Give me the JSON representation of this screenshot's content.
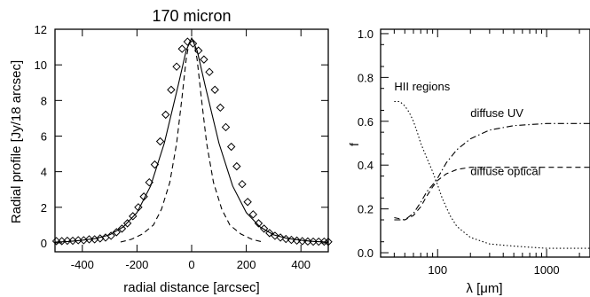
{
  "chart_data": [
    {
      "type": "line",
      "title": "170 micron",
      "xlabel": "radial distance [arcsec]",
      "ylabel": "Radial profile [Jy/18 arcsec]",
      "xlim": [
        -500,
        500
      ],
      "ylim": [
        -0.5,
        12
      ],
      "xticks": [
        -400,
        -200,
        0,
        200,
        400
      ],
      "yticks": [
        0,
        2,
        4,
        6,
        8,
        10,
        12
      ],
      "grid": false,
      "series": [
        {
          "style": "diamond-markers",
          "x": [
            -495,
            -475,
            -455,
            -435,
            -415,
            -395,
            -375,
            -355,
            -335,
            -315,
            -295,
            -275,
            -255,
            -235,
            -215,
            -195,
            -175,
            -155,
            -135,
            -115,
            -95,
            -75,
            -55,
            -35,
            -15,
            5,
            25,
            45,
            65,
            85,
            105,
            125,
            145,
            165,
            185,
            205,
            225,
            245,
            265,
            285,
            305,
            325,
            345,
            365,
            385,
            405,
            425,
            445,
            465,
            485,
            500
          ],
          "y": [
            0.1,
            0.1,
            0.12,
            0.12,
            0.15,
            0.15,
            0.2,
            0.2,
            0.25,
            0.3,
            0.4,
            0.6,
            0.8,
            1.1,
            1.5,
            2.0,
            2.6,
            3.4,
            4.4,
            5.7,
            7.2,
            8.6,
            9.9,
            10.9,
            11.3,
            11.2,
            10.8,
            10.3,
            9.6,
            8.6,
            7.6,
            6.5,
            5.4,
            4.3,
            3.3,
            2.3,
            1.6,
            1.1,
            0.8,
            0.55,
            0.4,
            0.3,
            0.22,
            0.17,
            0.13,
            0.1,
            0.08,
            0.07,
            0.07,
            0.07,
            0.06
          ]
        },
        {
          "style": "solid",
          "x": [
            -500,
            -450,
            -400,
            -350,
            -300,
            -250,
            -200,
            -150,
            -100,
            -50,
            -20,
            0,
            20,
            50,
            100,
            150,
            200,
            250,
            300,
            350,
            400,
            450,
            500
          ],
          "y": [
            0.05,
            0.08,
            0.15,
            0.25,
            0.45,
            0.9,
            1.7,
            3.2,
            5.6,
            8.8,
            10.8,
            11.5,
            10.8,
            8.8,
            5.6,
            3.2,
            1.7,
            0.9,
            0.45,
            0.25,
            0.15,
            0.08,
            0.05
          ]
        },
        {
          "style": "dashed",
          "x": [
            -260,
            -220,
            -180,
            -140,
            -110,
            -80,
            -55,
            -35,
            -20,
            -10,
            0,
            10,
            20,
            35,
            55,
            80,
            110,
            140,
            180,
            220,
            260
          ],
          "y": [
            0.05,
            0.2,
            0.5,
            1.0,
            1.9,
            3.4,
            5.6,
            8.2,
            10.3,
            11.2,
            11.5,
            11.2,
            10.3,
            8.2,
            5.6,
            3.4,
            1.9,
            1.0,
            0.5,
            0.2,
            0.05
          ]
        }
      ]
    },
    {
      "type": "line",
      "xlabel": "λ [μm]",
      "ylabel": "f",
      "xscale": "log",
      "xlim": [
        30,
        2500
      ],
      "ylim": [
        -0.02,
        1.02
      ],
      "xticks": [
        100,
        1000
      ],
      "yticks": [
        0.0,
        0.2,
        0.4,
        0.6,
        0.8,
        1.0
      ],
      "grid": false,
      "annotations": [
        {
          "text": "HII regions",
          "x": 40,
          "y": 0.74
        },
        {
          "text": "diffuse UV",
          "x": 200,
          "y": 0.62
        },
        {
          "text": "diffuse optical",
          "x": 200,
          "y": 0.355
        }
      ],
      "series": [
        {
          "label": "HII regions",
          "style": "dotted",
          "x": [
            40,
            45,
            50,
            55,
            60,
            65,
            70,
            80,
            90,
            100,
            110,
            130,
            150,
            200,
            300,
            500,
            1000,
            2500
          ],
          "y": [
            0.69,
            0.69,
            0.67,
            0.64,
            0.6,
            0.55,
            0.5,
            0.43,
            0.37,
            0.31,
            0.25,
            0.17,
            0.12,
            0.07,
            0.04,
            0.03,
            0.02,
            0.02
          ]
        },
        {
          "label": "diffuse UV",
          "style": "dash-dot",
          "x": [
            40,
            50,
            60,
            70,
            80,
            90,
            100,
            120,
            150,
            200,
            300,
            500,
            1000,
            2500
          ],
          "y": [
            0.15,
            0.15,
            0.18,
            0.23,
            0.28,
            0.31,
            0.34,
            0.41,
            0.47,
            0.52,
            0.56,
            0.58,
            0.59,
            0.59
          ]
        },
        {
          "label": "diffuse optical",
          "style": "dashed",
          "x": [
            40,
            50,
            60,
            70,
            80,
            90,
            100,
            120,
            150,
            200,
            300,
            500,
            1000,
            2500
          ],
          "y": [
            0.16,
            0.15,
            0.17,
            0.21,
            0.26,
            0.3,
            0.33,
            0.36,
            0.38,
            0.39,
            0.39,
            0.39,
            0.39,
            0.39
          ]
        }
      ]
    }
  ]
}
